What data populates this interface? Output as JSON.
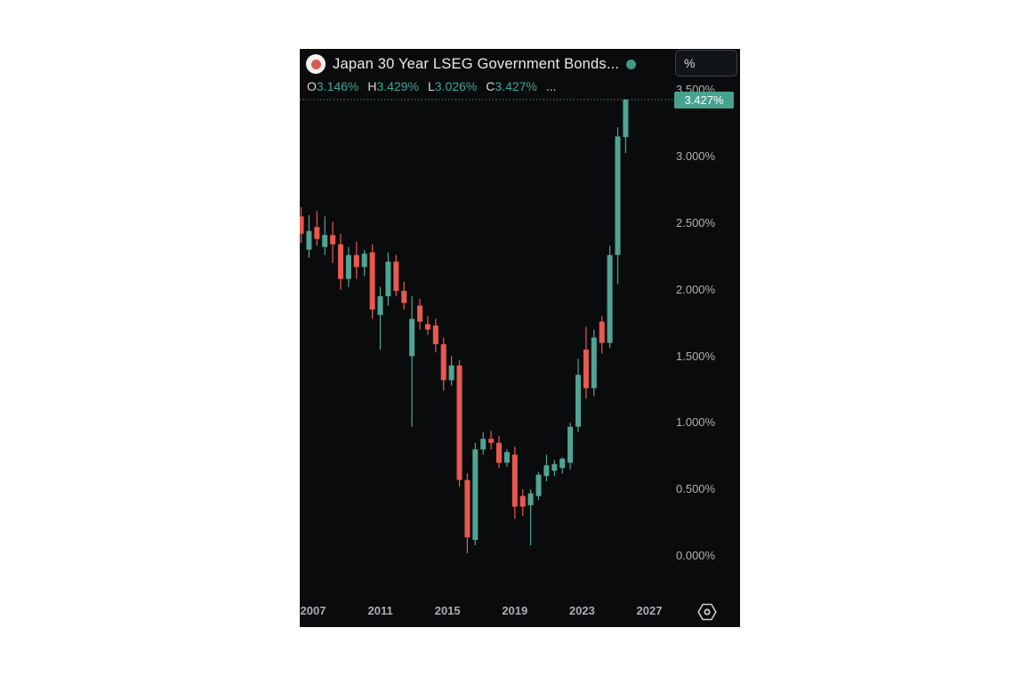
{
  "page": {
    "bg": "#ffffff"
  },
  "chart": {
    "symbol": {
      "flag_icon": "japan-flag",
      "title": "Japan 30 Year LSEG Government Bonds...",
      "status_icon": "live-dot"
    },
    "unit_selector": {
      "value": "%"
    },
    "ohlc": {
      "items": [
        {
          "k": "O",
          "v": "3.146%"
        },
        {
          "k": "H",
          "v": "3.429%"
        },
        {
          "k": "L",
          "v": "3.026%"
        },
        {
          "k": "C",
          "v": "3.427%"
        }
      ],
      "more": "..."
    },
    "last_price_label": "3.427%"
  },
  "chart_data": {
    "type": "candlestick",
    "title": "Japan 30 Year LSEG Government Bonds",
    "unit": "%",
    "x_description": "semiannual candles, 2006 to 2026, left to right",
    "x_ticks": [
      "2007",
      "2011",
      "2015",
      "2019",
      "2023",
      "2027"
    ],
    "y_ticks": [
      {
        "value": 3.5,
        "label": "3.500%"
      },
      {
        "value": 3.0,
        "label": "3.000%"
      },
      {
        "value": 2.5,
        "label": "2.500%"
      },
      {
        "value": 2.0,
        "label": "2.000%"
      },
      {
        "value": 1.5,
        "label": "1.500%"
      },
      {
        "value": 1.0,
        "label": "1.000%"
      },
      {
        "value": 0.5,
        "label": "0.500%"
      },
      {
        "value": 0.0,
        "label": "0.000%"
      }
    ],
    "y_range_visible": [
      -0.37,
      3.65
    ],
    "grid": false,
    "legend": "none",
    "last_close": 3.427,
    "last_ohlc": {
      "open": 3.146,
      "high": 3.429,
      "low": 3.026,
      "close": 3.427
    },
    "candles": [
      [
        2.55,
        2.62,
        2.35,
        2.42
      ],
      [
        2.3,
        2.56,
        2.24,
        2.44
      ],
      [
        2.47,
        2.59,
        2.33,
        2.38
      ],
      [
        2.32,
        2.55,
        2.26,
        2.41
      ],
      [
        2.41,
        2.51,
        2.2,
        2.34
      ],
      [
        2.34,
        2.42,
        2.0,
        2.08
      ],
      [
        2.08,
        2.32,
        2.02,
        2.26
      ],
      [
        2.26,
        2.36,
        2.08,
        2.17
      ],
      [
        2.17,
        2.3,
        2.1,
        2.27
      ],
      [
        2.28,
        2.34,
        1.78,
        1.85
      ],
      [
        1.81,
        2.02,
        1.55,
        1.95
      ],
      [
        1.95,
        2.28,
        1.88,
        2.21
      ],
      [
        2.21,
        2.26,
        1.95,
        1.99
      ],
      [
        1.99,
        2.06,
        1.85,
        1.9
      ],
      [
        1.5,
        1.95,
        0.97,
        1.78
      ],
      [
        1.88,
        1.93,
        1.7,
        1.76
      ],
      [
        1.74,
        1.8,
        1.66,
        1.7
      ],
      [
        1.73,
        1.78,
        1.53,
        1.59
      ],
      [
        1.59,
        1.64,
        1.24,
        1.32
      ],
      [
        1.32,
        1.5,
        1.28,
        1.43
      ],
      [
        1.43,
        1.47,
        0.52,
        0.57
      ],
      [
        0.57,
        0.62,
        0.02,
        0.14
      ],
      [
        0.12,
        0.85,
        0.08,
        0.8
      ],
      [
        0.8,
        0.93,
        0.76,
        0.88
      ],
      [
        0.88,
        0.94,
        0.8,
        0.85
      ],
      [
        0.85,
        0.9,
        0.66,
        0.7
      ],
      [
        0.7,
        0.8,
        0.67,
        0.78
      ],
      [
        0.76,
        0.82,
        0.28,
        0.37
      ],
      [
        0.45,
        0.5,
        0.3,
        0.37
      ],
      [
        0.38,
        0.5,
        0.08,
        0.47
      ],
      [
        0.45,
        0.63,
        0.42,
        0.61
      ],
      [
        0.6,
        0.76,
        0.56,
        0.68
      ],
      [
        0.64,
        0.72,
        0.6,
        0.69
      ],
      [
        0.66,
        0.74,
        0.62,
        0.73
      ],
      [
        0.7,
        1.0,
        0.65,
        0.97
      ],
      [
        0.97,
        1.48,
        0.93,
        1.36
      ],
      [
        1.55,
        1.72,
        1.18,
        1.26
      ],
      [
        1.26,
        1.7,
        1.2,
        1.64
      ],
      [
        1.76,
        1.8,
        1.52,
        1.6
      ],
      [
        1.6,
        2.33,
        1.56,
        2.26
      ],
      [
        2.26,
        3.22,
        2.04,
        3.15
      ],
      [
        3.146,
        3.429,
        3.026,
        3.427
      ]
    ],
    "colors": {
      "up": "#50a494",
      "down": "#e9594f",
      "badge_bg": "#47a28e",
      "badge_text": "#ffffff",
      "axis_text": "#aeb1b8",
      "title_text": "#e8eaed",
      "value_text": "#3ca891",
      "background": "#0a0b0c",
      "dotted_line": "#4ea79a"
    }
  }
}
